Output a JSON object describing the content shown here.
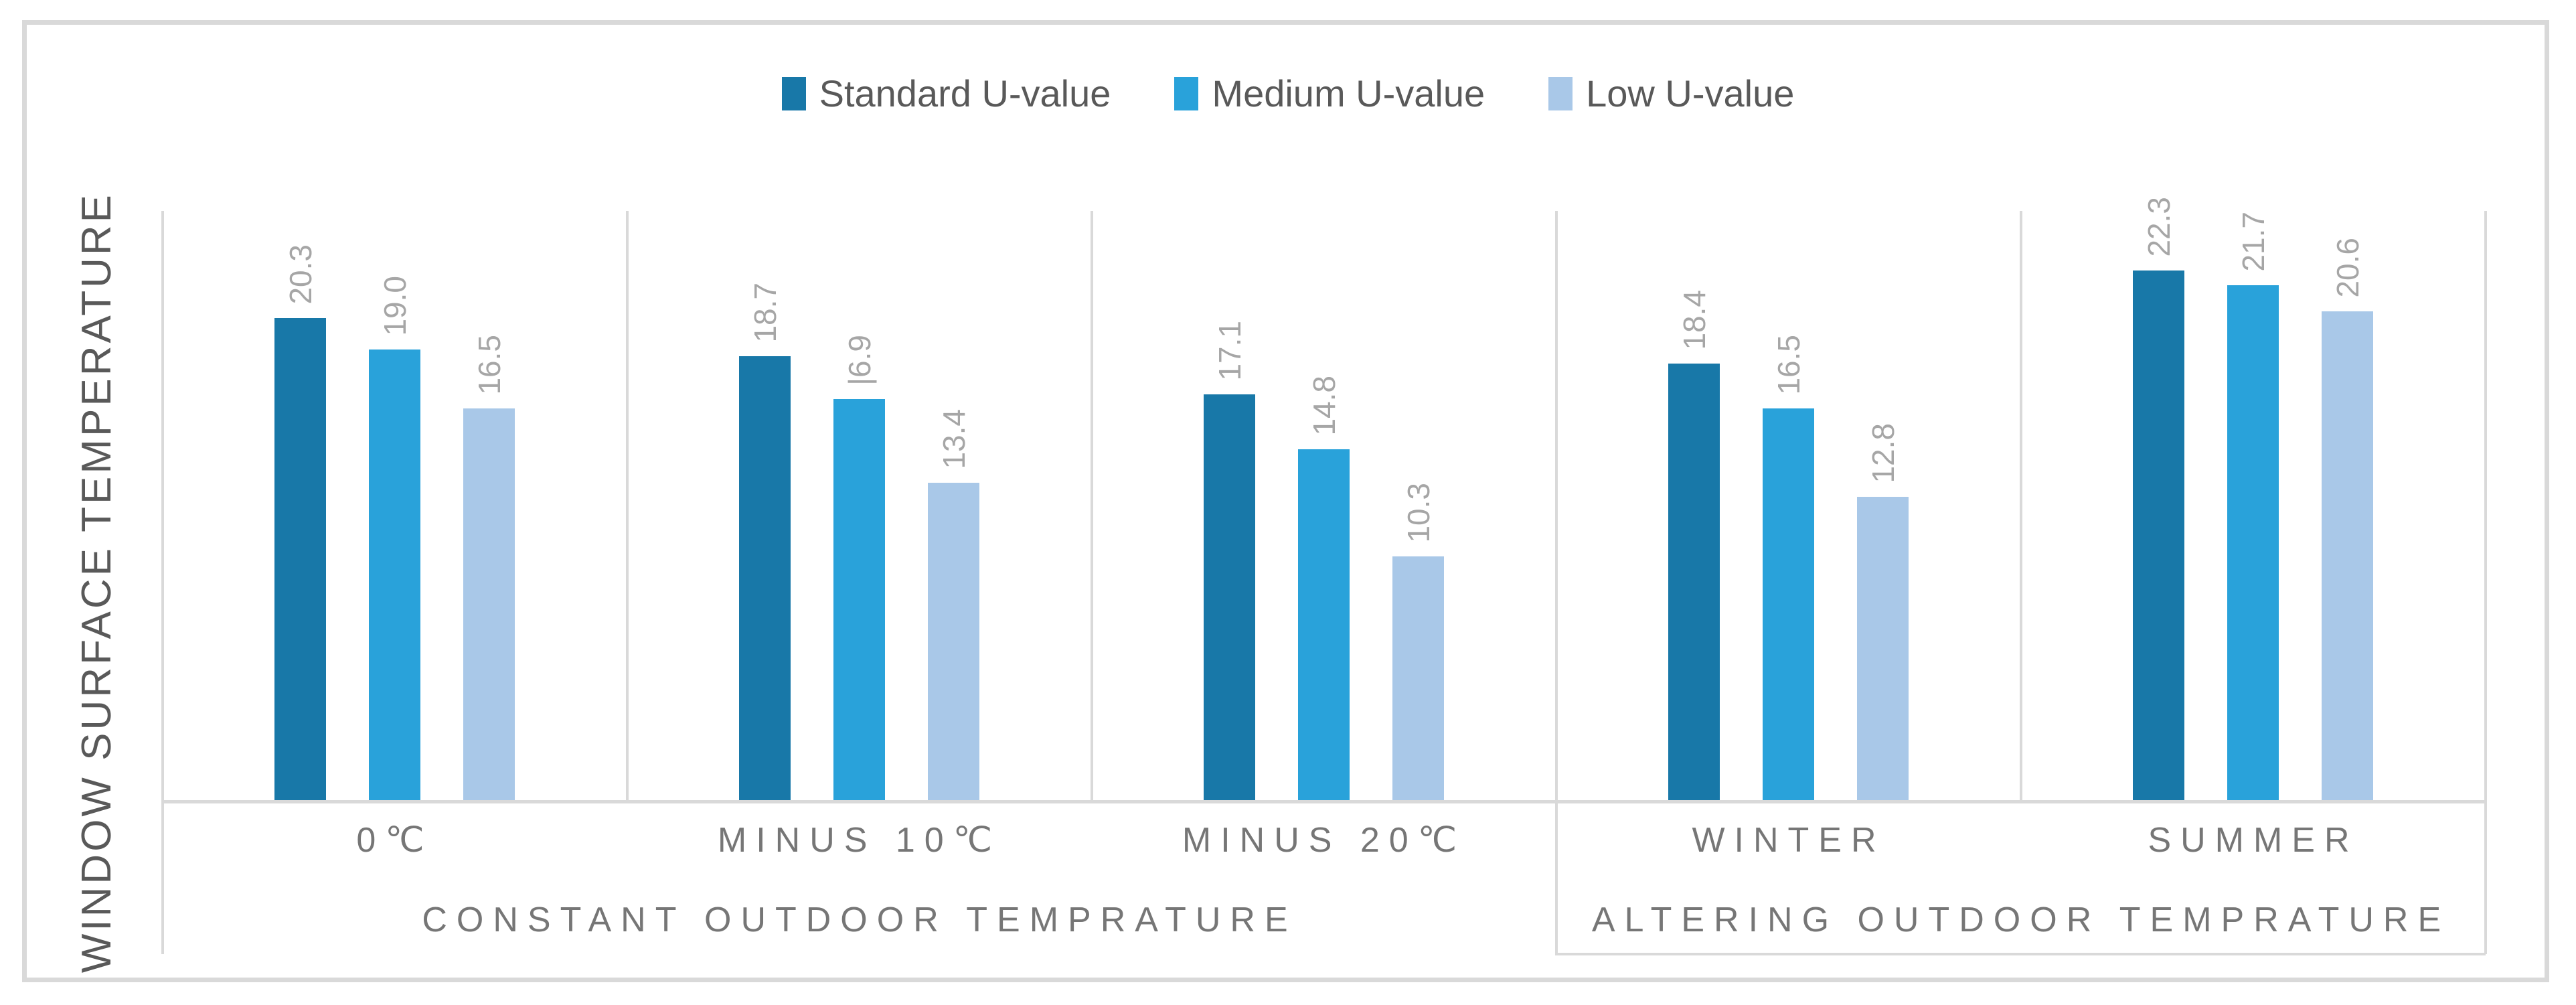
{
  "chart_data": {
    "type": "bar",
    "title": "",
    "xlabel": "",
    "ylabel": "WINDOW SURFACE TEMPERATURE",
    "ylim": [
      0,
      25
    ],
    "value_axis_visible": false,
    "gridlines": false,
    "legend_position": "top-center",
    "categories": [
      "0℃",
      "MINUS 10℃",
      "MINUS 20℃",
      "WINTER",
      "SUMMER"
    ],
    "category_groups": [
      {
        "label": "CONSTANT OUTDOOR TEMPRATURE",
        "span": [
          0,
          2
        ]
      },
      {
        "label": "ALTERING OUTDOOR TEMPRATURE",
        "span": [
          3,
          4
        ]
      }
    ],
    "series": [
      {
        "name": "Standard U-value",
        "color": "#1878A8",
        "values": [
          20.3,
          18.7,
          17.1,
          18.4,
          22.3
        ]
      },
      {
        "name": "Medium U-value",
        "color": "#29A2DA",
        "values": [
          19.0,
          16.9,
          14.8,
          16.5,
          21.7
        ]
      },
      {
        "name": "Low U-value",
        "color": "#A9C8E8",
        "values": [
          16.5,
          13.4,
          10.3,
          12.8,
          20.6
        ]
      }
    ],
    "data_labels": [
      [
        "20.3",
        "19.0",
        "16.5"
      ],
      [
        "18.7",
        "|6.9",
        "13.4"
      ],
      [
        "17.1",
        "14.8",
        "10.3"
      ],
      [
        "18.4",
        "16.5",
        "12.8"
      ],
      [
        "22.3",
        "21.7",
        "20.6"
      ]
    ],
    "colors": {
      "data_label": "#A6A6A6",
      "axis_line": "#D9D9D9",
      "category_text": "#767676",
      "legend_text": "#595959",
      "border": "#D9D9D9"
    }
  }
}
